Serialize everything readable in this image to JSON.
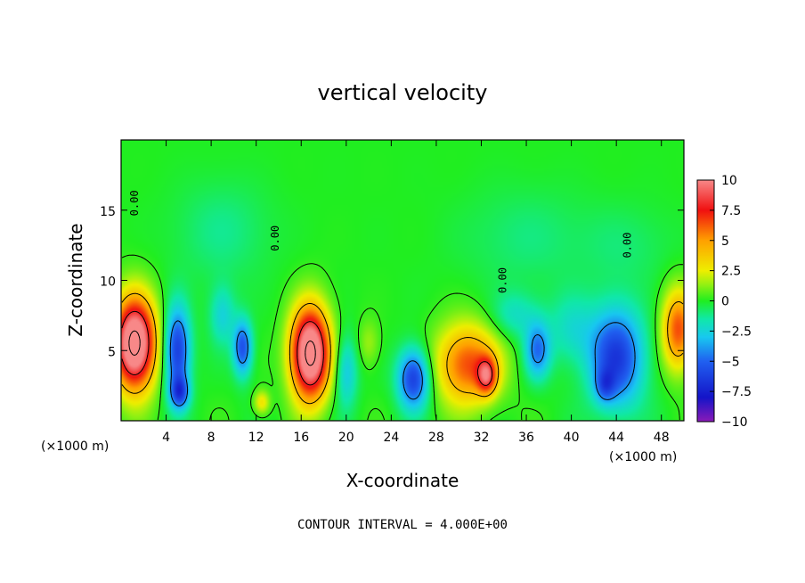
{
  "chart_data": {
    "type": "heatmap",
    "title": "vertical velocity",
    "xlabel": "X-coordinate",
    "ylabel": "Z-coordinate",
    "x_unit_label": "(×1000 m)",
    "y_unit_label": "(×1000 m)",
    "xlim": [
      0,
      50
    ],
    "ylim": [
      0,
      20
    ],
    "x_ticks": [
      4,
      8,
      12,
      16,
      20,
      24,
      28,
      32,
      36,
      40,
      44,
      48
    ],
    "x_tick_labels": [
      "4",
      "8",
      "12",
      "16",
      "20",
      "24",
      "28",
      "32",
      "36",
      "40",
      "44",
      "48"
    ],
    "y_ticks": [
      5,
      10,
      15
    ],
    "y_tick_labels": [
      "5",
      "10",
      "15"
    ],
    "colorbar": {
      "range": [
        -10,
        10
      ],
      "ticks": [
        10,
        7.5,
        5,
        2.5,
        0,
        -2.5,
        -5,
        -7.5,
        -10
      ],
      "tick_labels": [
        "10",
        "7.5",
        "5",
        "2.5",
        "0",
        "−2.5",
        "−5",
        "−7.5",
        "−10"
      ],
      "stops": [
        {
          "v": -10,
          "color": "#8a1ab8"
        },
        {
          "v": -8,
          "color": "#1414c8"
        },
        {
          "v": -5,
          "color": "#2060f0"
        },
        {
          "v": -3,
          "color": "#18c8f0"
        },
        {
          "v": -1.5,
          "color": "#10e8a8"
        },
        {
          "v": 0,
          "color": "#20ee20"
        },
        {
          "v": 1.5,
          "color": "#a0f010"
        },
        {
          "v": 2.5,
          "color": "#eeee00"
        },
        {
          "v": 5,
          "color": "#ffa000"
        },
        {
          "v": 7.5,
          "color": "#f01010"
        },
        {
          "v": 10,
          "color": "#f88888"
        }
      ]
    },
    "contour_interval": 4.0,
    "contour_label": "0.00",
    "features": [
      {
        "x": 1.2,
        "z": 5.5,
        "sx": 1.3,
        "sz": 2.3,
        "w": 13
      },
      {
        "x": 5.0,
        "z": 5.0,
        "sx": 0.8,
        "sz": 2.2,
        "w": -6.5
      },
      {
        "x": 5.2,
        "z": 2.0,
        "sx": 0.6,
        "sz": 0.8,
        "w": -5
      },
      {
        "x": 9.0,
        "z": 7.5,
        "sx": 0.8,
        "sz": 1.5,
        "w": -2.5
      },
      {
        "x": 10.8,
        "z": 5.2,
        "sx": 0.6,
        "sz": 1.4,
        "w": -5.5
      },
      {
        "x": 12.5,
        "z": 1.3,
        "sx": 0.5,
        "sz": 0.6,
        "w": 3
      },
      {
        "x": 16.8,
        "z": 4.8,
        "sx": 1.2,
        "sz": 2.3,
        "w": 13
      },
      {
        "x": 20.0,
        "z": 3.5,
        "sx": 0.7,
        "sz": 1.8,
        "w": -3
      },
      {
        "x": 22.0,
        "z": 5.5,
        "sx": 0.7,
        "sz": 1.2,
        "w": 1.5
      },
      {
        "x": 26.0,
        "z": 3.0,
        "sx": 1.0,
        "sz": 1.5,
        "w": -6.5
      },
      {
        "x": 30.8,
        "z": 4.0,
        "sx": 2.0,
        "sz": 2.0,
        "w": 6.5
      },
      {
        "x": 32.5,
        "z": 3.2,
        "sx": 0.6,
        "sz": 0.9,
        "w": 6
      },
      {
        "x": 35.0,
        "z": 7.5,
        "sx": 1.5,
        "sz": 1.2,
        "w": -2
      },
      {
        "x": 37.0,
        "z": 5.0,
        "sx": 0.8,
        "sz": 1.4,
        "w": -4.5
      },
      {
        "x": 40.0,
        "z": 6.5,
        "sx": 1.5,
        "sz": 1.8,
        "w": -2
      },
      {
        "x": 44.0,
        "z": 4.5,
        "sx": 1.7,
        "sz": 2.5,
        "w": -6.5
      },
      {
        "x": 43.0,
        "z": 2.5,
        "sx": 0.6,
        "sz": 0.8,
        "w": -3
      },
      {
        "x": 49.5,
        "z": 6.5,
        "sx": 1.0,
        "sz": 2.0,
        "w": 6.5
      },
      {
        "x": 9.0,
        "z": 13.5,
        "sx": 3.0,
        "sz": 2.5,
        "w": -1.2
      },
      {
        "x": 36.0,
        "z": 13.0,
        "sx": 4.0,
        "sz": 2.5,
        "w": -1.0
      },
      {
        "x": 45.0,
        "z": 12.5,
        "sx": 3.0,
        "sz": 2.0,
        "w": -0.8
      }
    ]
  },
  "annotations": {
    "contour_interval_text": "CONTOUR INTERVAL = 4.000E+00"
  }
}
